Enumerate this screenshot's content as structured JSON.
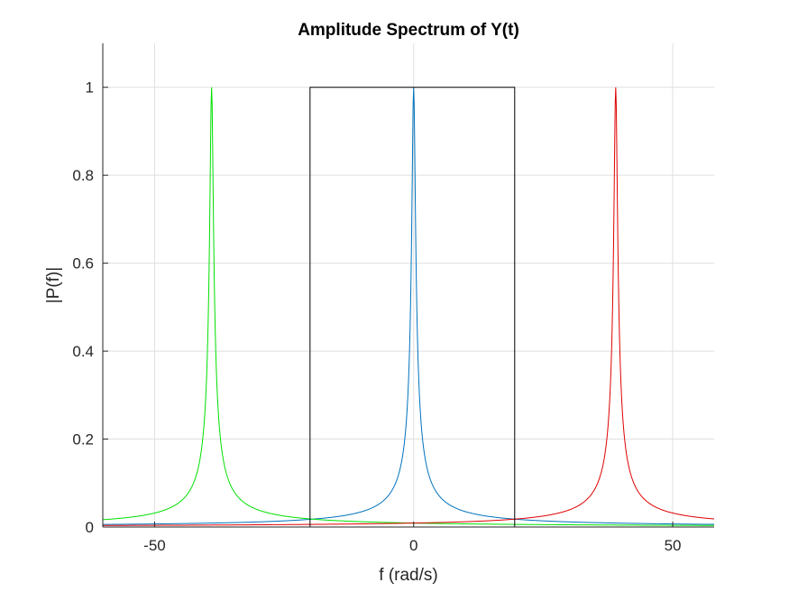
{
  "chart_data": {
    "type": "line",
    "title": "Amplitude Spectrum of Y(t)",
    "xlabel": "f (rad/s)",
    "ylabel": "|P(f)|",
    "xlim": [
      -60,
      58
    ],
    "ylim": [
      0,
      1.1
    ],
    "xticks": [
      -50,
      0,
      50
    ],
    "yticks": [
      0,
      0.2,
      0.4,
      0.6,
      0.8,
      1
    ],
    "xtick_labels": [
      "-50",
      "0",
      "50"
    ],
    "ytick_labels": [
      "0",
      "0.2",
      "0.4",
      "0.6",
      "0.8",
      "1"
    ],
    "grid": true,
    "series": [
      {
        "color": "#0072BD",
        "kind": "peak",
        "center": 0,
        "peak": 1
      },
      {
        "color": "#00E000",
        "kind": "peak",
        "center": -39,
        "peak": 1
      },
      {
        "color": "#E00000",
        "kind": "peak",
        "center": 39,
        "peak": 1
      },
      {
        "color": "#000000",
        "kind": "rect",
        "x": [
          -39,
          -20,
          -20,
          19.5,
          19.5,
          39
        ],
        "y": [
          0,
          0,
          1,
          1,
          0,
          0
        ]
      }
    ]
  }
}
